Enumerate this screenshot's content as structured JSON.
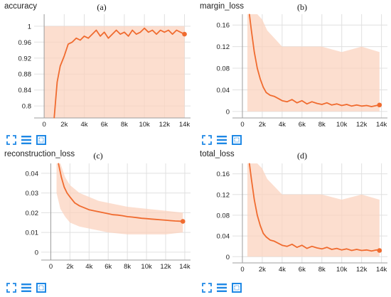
{
  "chart_data": [
    {
      "id": "a",
      "panel_label": "(a)",
      "title": "accuracy",
      "type": "line",
      "xlim": [
        -1000,
        14600
      ],
      "ylim": [
        0.77,
        1.03
      ],
      "xticks": [
        0,
        2000,
        4000,
        6000,
        8000,
        10000,
        12000,
        14000
      ],
      "xtick_labels": [
        "0",
        "2k",
        "4k",
        "6k",
        "8k",
        "10k",
        "12k",
        "14k"
      ],
      "yticks": [
        0.8,
        0.84,
        0.88,
        0.92,
        0.96,
        1
      ],
      "ytick_labels": [
        "0.8",
        "0.84",
        "0.88",
        "0.92",
        "0.96",
        "1"
      ],
      "grid": true,
      "band": {
        "x": [
          0,
          14000
        ],
        "upper": [
          1,
          1
        ],
        "lower": [
          0.77,
          0.77
        ]
      },
      "series": [
        {
          "x": [
            1000,
            1300,
            1600,
            2000,
            2400,
            2800,
            3200,
            3600,
            4000,
            4400,
            4800,
            5200,
            5600,
            6000,
            6400,
            6800,
            7200,
            7600,
            8000,
            8400,
            8800,
            9200,
            9600,
            10000,
            10400,
            10800,
            11200,
            11600,
            12000,
            12400,
            12800,
            13200,
            13600,
            14000
          ],
          "y": [
            0.77,
            0.86,
            0.9,
            0.925,
            0.955,
            0.96,
            0.97,
            0.965,
            0.975,
            0.97,
            0.98,
            0.99,
            0.975,
            0.985,
            0.97,
            0.98,
            0.99,
            0.98,
            0.985,
            0.975,
            0.99,
            0.98,
            0.985,
            0.995,
            0.985,
            0.99,
            0.98,
            0.99,
            0.985,
            0.99,
            0.98,
            0.99,
            0.985,
            0.98
          ]
        }
      ]
    },
    {
      "id": "b",
      "panel_label": "(b)",
      "title": "margin_loss",
      "type": "line",
      "xlim": [
        -1000,
        14600
      ],
      "ylim": [
        -0.012,
        0.18
      ],
      "xticks": [
        0,
        2000,
        4000,
        6000,
        8000,
        10000,
        12000,
        14000
      ],
      "xtick_labels": [
        "0",
        "2k",
        "4k",
        "6k",
        "8k",
        "10k",
        "12k",
        "14k"
      ],
      "yticks": [
        0,
        0.04,
        0.08,
        0.12,
        0.16
      ],
      "ytick_labels": [
        "0",
        "0.04",
        "0.08",
        "0.12",
        "0.16"
      ],
      "grid": true,
      "band": {
        "x": [
          500,
          1000,
          1500,
          2000,
          2500,
          3000,
          4000,
          6000,
          8000,
          10000,
          12000,
          13800
        ],
        "upper": [
          0.18,
          0.18,
          0.18,
          0.17,
          0.15,
          0.14,
          0.12,
          0.12,
          0.12,
          0.11,
          0.12,
          0.11
        ],
        "lower": [
          0,
          0,
          0,
          0,
          0,
          0,
          0,
          0,
          0,
          0,
          0,
          0
        ]
      },
      "series": [
        {
          "x": [
            700,
            900,
            1200,
            1500,
            1800,
            2100,
            2400,
            2800,
            3200,
            3600,
            4000,
            4500,
            5000,
            5500,
            6000,
            6500,
            7000,
            7500,
            8000,
            8500,
            9000,
            9500,
            10000,
            10500,
            11000,
            11500,
            12000,
            12500,
            13000,
            13500,
            13800
          ],
          "y": [
            0.18,
            0.15,
            0.11,
            0.08,
            0.06,
            0.045,
            0.035,
            0.03,
            0.028,
            0.024,
            0.02,
            0.018,
            0.022,
            0.016,
            0.02,
            0.014,
            0.018,
            0.015,
            0.013,
            0.016,
            0.012,
            0.014,
            0.011,
            0.013,
            0.01,
            0.012,
            0.01,
            0.011,
            0.009,
            0.011,
            0.012
          ]
        }
      ]
    },
    {
      "id": "c",
      "panel_label": "(c)",
      "title": "reconstruction_loss",
      "type": "line",
      "xlim": [
        -1000,
        14600
      ],
      "ylim": [
        -0.004,
        0.045
      ],
      "xticks": [
        0,
        2000,
        4000,
        6000,
        8000,
        10000,
        12000,
        14000
      ],
      "xtick_labels": [
        "0",
        "2k",
        "4k",
        "6k",
        "8k",
        "10k",
        "12k",
        "14k"
      ],
      "yticks": [
        0,
        0.01,
        0.02,
        0.03,
        0.04
      ],
      "ytick_labels": [
        "0",
        "0.01",
        "0.02",
        "0.03",
        "0.04"
      ],
      "grid": true,
      "band": {
        "x": [
          600,
          1000,
          1500,
          2000,
          3000,
          4000,
          5000,
          6000,
          8000,
          10000,
          12000,
          13800
        ],
        "upper": [
          0.045,
          0.045,
          0.038,
          0.034,
          0.03,
          0.028,
          0.026,
          0.025,
          0.023,
          0.022,
          0.021,
          0.02
        ],
        "lower": [
          0.03,
          0.022,
          0.018,
          0.015,
          0.013,
          0.012,
          0.011,
          0.01,
          0.009,
          0.009,
          0.009,
          0.01
        ]
      },
      "series": [
        {
          "x": [
            800,
            1100,
            1400,
            1700,
            2000,
            2500,
            3000,
            3500,
            4000,
            4500,
            5000,
            5500,
            6000,
            6500,
            7000,
            7500,
            8000,
            8500,
            9000,
            9500,
            10000,
            10500,
            11000,
            11500,
            12000,
            12500,
            13000,
            13500,
            13800
          ],
          "y": [
            0.045,
            0.038,
            0.033,
            0.03,
            0.028,
            0.025,
            0.0235,
            0.0225,
            0.0215,
            0.021,
            0.0205,
            0.02,
            0.0195,
            0.019,
            0.0188,
            0.0185,
            0.018,
            0.0178,
            0.0175,
            0.0172,
            0.017,
            0.0168,
            0.0166,
            0.0164,
            0.0162,
            0.016,
            0.0158,
            0.0157,
            0.0156
          ]
        }
      ]
    },
    {
      "id": "d",
      "panel_label": "(d)",
      "title": "total_loss",
      "type": "line",
      "xlim": [
        -1000,
        14600
      ],
      "ylim": [
        -0.012,
        0.18
      ],
      "xticks": [
        0,
        2000,
        4000,
        6000,
        8000,
        10000,
        12000,
        14000
      ],
      "xtick_labels": [
        "0",
        "2k",
        "4k",
        "6k",
        "8k",
        "10k",
        "12k",
        "14k"
      ],
      "yticks": [
        0,
        0.04,
        0.08,
        0.12,
        0.16
      ],
      "ytick_labels": [
        "0",
        "0.04",
        "0.08",
        "0.12",
        "0.16"
      ],
      "grid": true,
      "band": {
        "x": [
          500,
          1000,
          1500,
          2000,
          2500,
          3000,
          4000,
          6000,
          8000,
          10000,
          12000,
          13800
        ],
        "upper": [
          0.18,
          0.18,
          0.18,
          0.17,
          0.15,
          0.14,
          0.12,
          0.12,
          0.12,
          0.11,
          0.12,
          0.11
        ],
        "lower": [
          0,
          0,
          0,
          0,
          0,
          0,
          0,
          0,
          0,
          0,
          0,
          0
        ]
      },
      "series": [
        {
          "x": [
            700,
            900,
            1200,
            1500,
            1800,
            2100,
            2400,
            2800,
            3200,
            3600,
            4000,
            4500,
            5000,
            5500,
            6000,
            6500,
            7000,
            7500,
            8000,
            8500,
            9000,
            9500,
            10000,
            10500,
            11000,
            11500,
            12000,
            12500,
            13000,
            13500,
            13800
          ],
          "y": [
            0.18,
            0.15,
            0.11,
            0.08,
            0.06,
            0.045,
            0.038,
            0.032,
            0.03,
            0.026,
            0.022,
            0.02,
            0.024,
            0.018,
            0.022,
            0.016,
            0.02,
            0.017,
            0.015,
            0.018,
            0.014,
            0.016,
            0.013,
            0.015,
            0.012,
            0.014,
            0.012,
            0.013,
            0.011,
            0.013,
            0.012
          ]
        }
      ]
    }
  ],
  "colors": {
    "line": "#f06b2f",
    "band": "#fbd3bf",
    "grid": "#e0e0e0",
    "axis": "#9e9e9e",
    "icon": "#1e88e5"
  },
  "toolbar_icons": [
    "fit-to-data-icon",
    "data-download-icon",
    "expand-chart-icon"
  ]
}
